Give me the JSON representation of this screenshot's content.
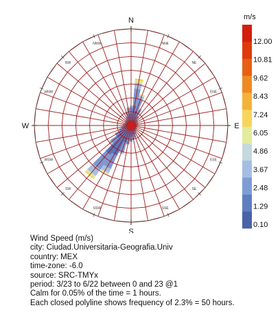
{
  "chart_data": {
    "type": "wind-rose",
    "center_labels": [
      "N",
      "E",
      "S",
      "W"
    ],
    "directions": [
      "N",
      "NNE",
      "NE",
      "ENE",
      "E",
      "ESE",
      "SE",
      "SSE",
      "S",
      "SSW",
      "SW",
      "WSW",
      "W",
      "WNW",
      "NW",
      "NNW"
    ],
    "direction_labels": [
      "NNE",
      "NE",
      "ENE",
      "ESE",
      "SE",
      "SSE",
      "SSW",
      "SW",
      "WSW",
      "WNW",
      "NW",
      "NNW"
    ],
    "sectors_count": 36,
    "ring_step_percent": 2.3,
    "ring_count": 7,
    "legend": {
      "title": "m/s",
      "tick_labels": [
        "12.00",
        "10.81",
        "9.62",
        "8.43",
        "7.24",
        "6.05",
        "4.86",
        "3.67",
        "2.48",
        "1.29",
        "0.10"
      ],
      "colors": [
        "#4a62a8",
        "#5f7ec0",
        "#7f9cd4",
        "#a6bde3",
        "#c4d8dd",
        "#e3eb9d",
        "#f7d45c",
        "#f4b23a",
        "#ef8a22",
        "#e66013",
        "#de3a0c",
        "#d21f0c"
      ]
    },
    "stack_colors": [
      "#5a70b8",
      "#7f97d0",
      "#aabfe2",
      "#dfe89c",
      "#f4d352"
    ],
    "series_by_direction_deg": [
      {
        "dir": 0,
        "values": [
          2.0,
          1.0,
          0.3,
          0.0,
          0.0
        ]
      },
      {
        "dir": 10,
        "values": [
          3.4,
          2.8,
          1.0,
          0.4,
          0.3
        ]
      },
      {
        "dir": 20,
        "values": [
          2.6,
          2.0,
          0.6,
          0.3,
          0.0
        ]
      },
      {
        "dir": 30,
        "values": [
          1.8,
          1.1,
          0.3,
          0.0,
          0.0
        ]
      },
      {
        "dir": 40,
        "values": [
          1.3,
          0.6,
          0.0,
          0.0,
          0.0
        ]
      },
      {
        "dir": 50,
        "values": [
          1.0,
          0.4,
          0.0,
          0.0,
          0.0
        ]
      },
      {
        "dir": 60,
        "values": [
          0.9,
          0.3,
          0.0,
          0.0,
          0.0
        ]
      },
      {
        "dir": 70,
        "values": [
          0.9,
          0.3,
          0.0,
          0.0,
          0.0
        ]
      },
      {
        "dir": 80,
        "values": [
          0.9,
          0.2,
          0.0,
          0.0,
          0.0
        ]
      },
      {
        "dir": 90,
        "values": [
          0.9,
          0.2,
          0.0,
          0.0,
          0.0
        ]
      },
      {
        "dir": 100,
        "values": [
          0.8,
          0.2,
          0.0,
          0.0,
          0.0
        ]
      },
      {
        "dir": 110,
        "values": [
          0.8,
          0.2,
          0.0,
          0.0,
          0.0
        ]
      },
      {
        "dir": 120,
        "values": [
          0.8,
          0.2,
          0.0,
          0.0,
          0.0
        ]
      },
      {
        "dir": 130,
        "values": [
          0.9,
          0.2,
          0.0,
          0.0,
          0.0
        ]
      },
      {
        "dir": 140,
        "values": [
          1.0,
          0.3,
          0.0,
          0.0,
          0.0
        ]
      },
      {
        "dir": 150,
        "values": [
          1.2,
          0.4,
          0.0,
          0.0,
          0.0
        ]
      },
      {
        "dir": 160,
        "values": [
          1.5,
          0.6,
          0.0,
          0.0,
          0.0
        ]
      },
      {
        "dir": 170,
        "values": [
          1.7,
          0.7,
          0.0,
          0.0,
          0.0
        ]
      },
      {
        "dir": 180,
        "values": [
          1.9,
          0.8,
          0.0,
          0.0,
          0.0
        ]
      },
      {
        "dir": 190,
        "values": [
          2.2,
          1.0,
          0.0,
          0.0,
          0.0
        ]
      },
      {
        "dir": 200,
        "values": [
          3.0,
          1.6,
          0.4,
          0.0,
          0.0
        ]
      },
      {
        "dir": 210,
        "values": [
          5.6,
          2.4,
          0.8,
          0.3,
          0.0
        ]
      },
      {
        "dir": 220,
        "values": [
          6.0,
          3.0,
          1.3,
          0.4,
          0.2
        ]
      },
      {
        "dir": 230,
        "values": [
          3.0,
          1.2,
          0.3,
          0.0,
          0.0
        ]
      },
      {
        "dir": 240,
        "values": [
          2.2,
          0.8,
          0.0,
          0.0,
          0.0
        ]
      },
      {
        "dir": 250,
        "values": [
          1.6,
          0.5,
          0.0,
          0.0,
          0.0
        ]
      },
      {
        "dir": 260,
        "values": [
          1.3,
          0.4,
          0.0,
          0.0,
          0.0
        ]
      },
      {
        "dir": 270,
        "values": [
          1.1,
          0.3,
          0.0,
          0.0,
          0.0
        ]
      },
      {
        "dir": 280,
        "values": [
          1.0,
          0.3,
          0.0,
          0.0,
          0.0
        ]
      },
      {
        "dir": 290,
        "values": [
          0.9,
          0.2,
          0.0,
          0.0,
          0.0
        ]
      },
      {
        "dir": 300,
        "values": [
          0.9,
          0.2,
          0.0,
          0.0,
          0.0
        ]
      },
      {
        "dir": 310,
        "values": [
          0.9,
          0.3,
          0.0,
          0.0,
          0.0
        ]
      },
      {
        "dir": 320,
        "values": [
          1.0,
          0.3,
          0.0,
          0.0,
          0.0
        ]
      },
      {
        "dir": 330,
        "values": [
          1.2,
          0.4,
          0.0,
          0.0,
          0.0
        ]
      },
      {
        "dir": 340,
        "values": [
          1.6,
          0.7,
          0.0,
          0.0,
          0.0
        ]
      },
      {
        "dir": 350,
        "values": [
          2.0,
          0.9,
          0.2,
          0.0,
          0.0
        ]
      }
    ],
    "grid": true,
    "legend_placement": "right"
  },
  "info": {
    "line1": "Wind Speed (m/s)",
    "line2": "city: Ciudad.Universitaria-Geografia.Univ",
    "line3": "country: MEX",
    "line4": "time-zone: -6.0",
    "line5": "source: SRC-TMYx",
    "line6": "period: 3/23 to 6/22 between 0 and 23 @1",
    "line7": "Calm for 0.05% of the time = 1 hours.",
    "line8": "Each closed polyline shows frequency of 2.3% = 50 hours."
  },
  "colors": {
    "grid": "#9b1c1c",
    "calm_center": "#c81e1e",
    "text": "#111111"
  }
}
